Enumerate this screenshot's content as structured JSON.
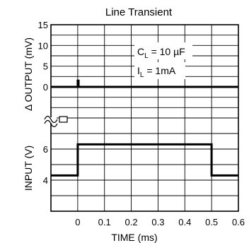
{
  "chart_data": {
    "type": "line",
    "title": "Line Transient",
    "xlabel": "TIME (ms)",
    "x_ticks": [
      "0",
      "0.1",
      "0.2",
      "0.3",
      "0.4",
      "0.5",
      "0.6"
    ],
    "xlim": [
      -0.1,
      0.6
    ],
    "panels": [
      {
        "name": "output",
        "ylabel": "Δ OUTPUT (mV)",
        "y_ticks": [
          "0",
          "5",
          "10",
          "15"
        ],
        "ylim": [
          -7.5,
          15
        ],
        "series": [
          {
            "x": [
              -0.1,
              0.0,
              0.0,
              0.003,
              0.003,
              0.6
            ],
            "y": [
              0,
              0,
              1.5,
              1.5,
              0,
              0
            ]
          }
        ]
      },
      {
        "name": "input",
        "ylabel": "INPUT (V)",
        "y_ticks": [
          "4",
          "6"
        ],
        "ylim": [
          2,
          8
        ],
        "series": [
          {
            "x": [
              -0.1,
              0.0,
              0.0,
              0.5,
              0.5,
              0.6
            ],
            "y": [
              4.3,
              4.3,
              6.3,
              6.3,
              4.3,
              4.3
            ]
          }
        ]
      }
    ],
    "annotations": [
      {
        "main": "C",
        "sub": "L",
        "rest": " = 10 µF"
      },
      {
        "main": "I",
        "sub": "L",
        "rest": " = 1mA"
      }
    ],
    "grid": true
  }
}
